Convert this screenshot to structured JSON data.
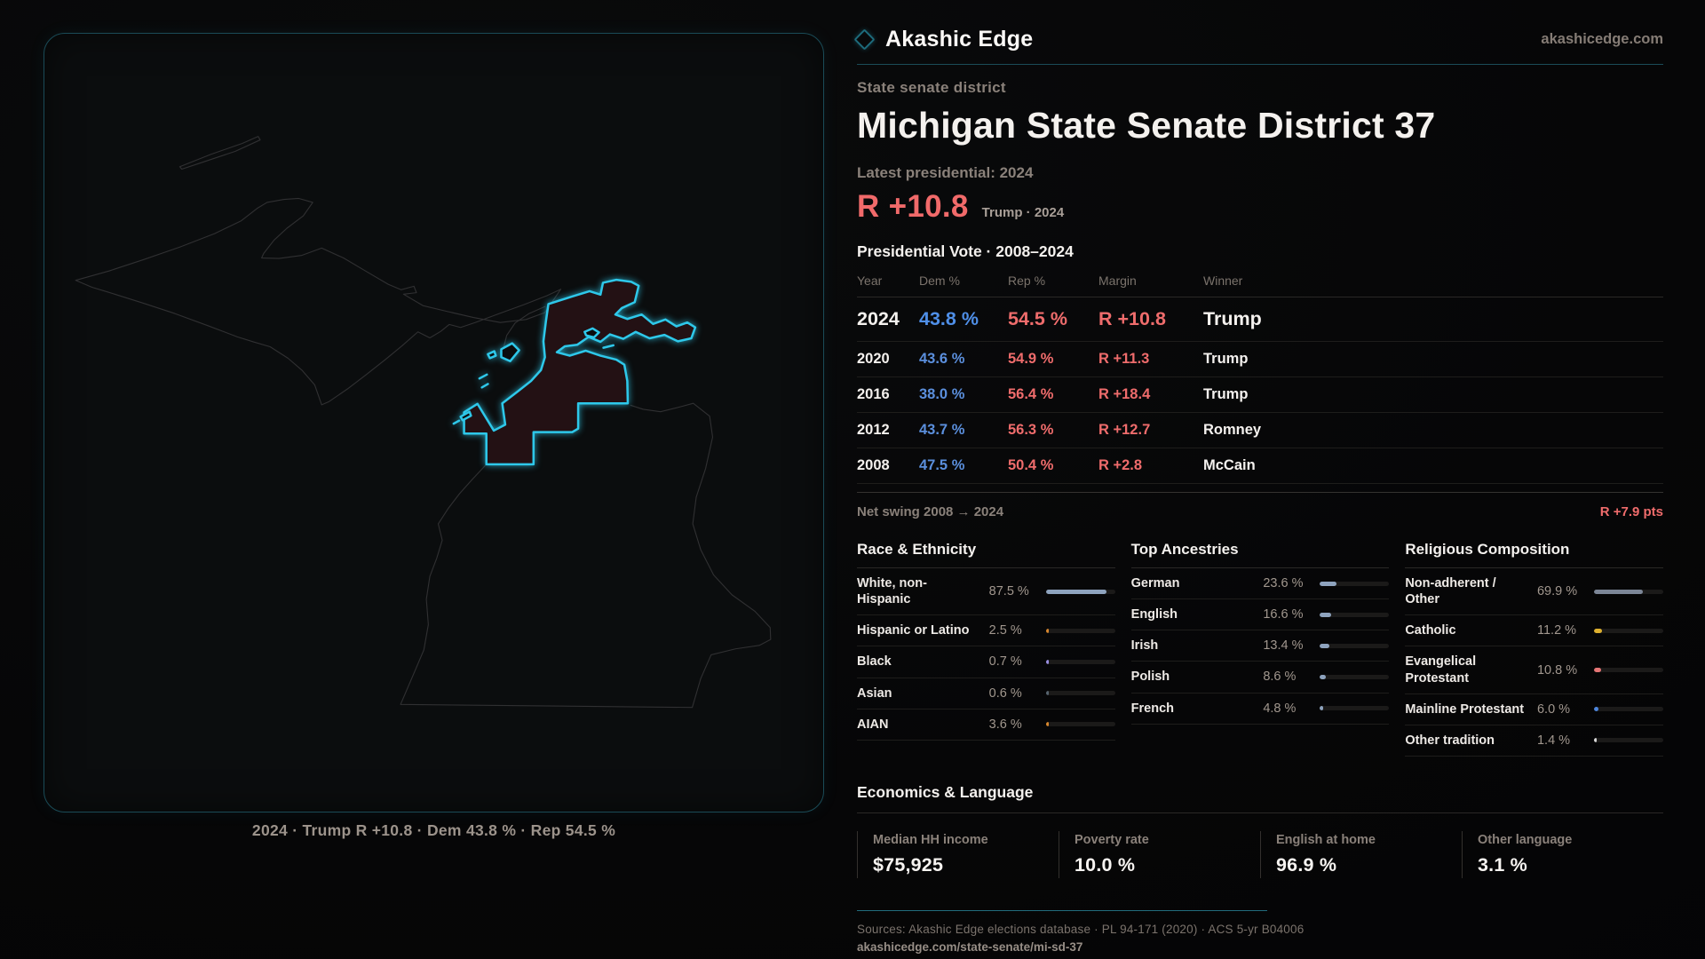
{
  "brand": {
    "name": "Akashic Edge",
    "domain": "akashicedge.com"
  },
  "header": {
    "eyebrow": "State senate district",
    "title": "Michigan State Senate District 37",
    "latest_label": "Latest presidential: 2024",
    "headline_margin": "R +10.8",
    "headline_context": "Trump · 2024"
  },
  "table": {
    "title": "Presidential Vote · 2008–2024",
    "columns": [
      "Year",
      "Dem %",
      "Rep %",
      "Margin",
      "Winner"
    ],
    "rows": [
      {
        "year": "2024",
        "dem": "43.8 %",
        "rep": "54.5 %",
        "margin": "R +10.8",
        "winner": "Trump",
        "featured": true
      },
      {
        "year": "2020",
        "dem": "43.6 %",
        "rep": "54.9 %",
        "margin": "R +11.3",
        "winner": "Trump",
        "featured": false
      },
      {
        "year": "2016",
        "dem": "38.0 %",
        "rep": "56.4 %",
        "margin": "R +18.4",
        "winner": "Trump",
        "featured": false
      },
      {
        "year": "2012",
        "dem": "43.7 %",
        "rep": "56.3 %",
        "margin": "R +12.7",
        "winner": "Romney",
        "featured": false
      },
      {
        "year": "2008",
        "dem": "47.5 %",
        "rep": "50.4 %",
        "margin": "R +2.8",
        "winner": "McCain",
        "featured": false
      }
    ]
  },
  "net_swing": {
    "label": "Net swing 2008 → 2024",
    "value": "R +7.9 pts"
  },
  "demographics": {
    "sections": [
      {
        "title": "Race & Ethnicity",
        "rows": [
          {
            "label": "White, non-Hispanic",
            "value": "87.5 %",
            "pct": 87.5,
            "color": "#8ea3be"
          },
          {
            "label": "Hispanic or Latino",
            "value": "2.5 %",
            "pct": 2.5,
            "color": "#d8872e"
          },
          {
            "label": "Black",
            "value": "0.7 %",
            "pct": 0.7,
            "color": "#9a8fe2"
          },
          {
            "label": "Asian",
            "value": "0.6 %",
            "pct": 0.6,
            "color": "#56636f"
          },
          {
            "label": "AIAN",
            "value": "3.6 %",
            "pct": 3.6,
            "color": "#d8872e"
          }
        ]
      },
      {
        "title": "Top Ancestries",
        "rows": [
          {
            "label": "German",
            "value": "23.6 %",
            "pct": 23.6,
            "color": "#8ea3be"
          },
          {
            "label": "English",
            "value": "16.6 %",
            "pct": 16.6,
            "color": "#8ea3be"
          },
          {
            "label": "Irish",
            "value": "13.4 %",
            "pct": 13.4,
            "color": "#8ea3be"
          },
          {
            "label": "Polish",
            "value": "8.6 %",
            "pct": 8.6,
            "color": "#8ea3be"
          },
          {
            "label": "French",
            "value": "4.8 %",
            "pct": 4.8,
            "color": "#8ea3be"
          }
        ]
      },
      {
        "title": "Religious Composition",
        "rows": [
          {
            "label": "Non-adherent / Other",
            "value": "69.9 %",
            "pct": 69.9,
            "color": "#7c8697"
          },
          {
            "label": "Catholic",
            "value": "11.2 %",
            "pct": 11.2,
            "color": "#ddb02f"
          },
          {
            "label": "Evangelical Protestant",
            "value": "10.8 %",
            "pct": 10.8,
            "color": "#e57575"
          },
          {
            "label": "Mainline Protestant",
            "value": "6.0 %",
            "pct": 6.0,
            "color": "#4d86dd"
          },
          {
            "label": "Other tradition",
            "value": "1.4 %",
            "pct": 1.4,
            "color": "#d8d8d8"
          }
        ]
      }
    ]
  },
  "economics": {
    "title": "Economics & Language",
    "stats": [
      {
        "label": "Median HH income",
        "value": "$75,925"
      },
      {
        "label": "Poverty rate",
        "value": "10.0 %"
      },
      {
        "label": "English at home",
        "value": "96.9 %"
      },
      {
        "label": "Other language",
        "value": "3.1 %"
      }
    ]
  },
  "footer": {
    "sources": "Sources: Akashic Edge elections database · PL 94-171 (2020) · ACS 5-yr B04006",
    "permalink": "akashicedge.com/state-senate/mi-sd-37"
  },
  "map": {
    "caption": "2024 · Trump R +10.8 · Dem 43.8 % · Rep 54.5 %"
  },
  "colors": {
    "district_cyan": "#2ec8ea",
    "district_fill": "#231114",
    "state_outline": "#303032",
    "rep_red": "#ef6c6c",
    "dem_blue": "#5b8fdd",
    "headline_red": "#f16a6a",
    "teal_rule": "#1b4c58",
    "bar_steel_blue": "#8ea3be"
  }
}
